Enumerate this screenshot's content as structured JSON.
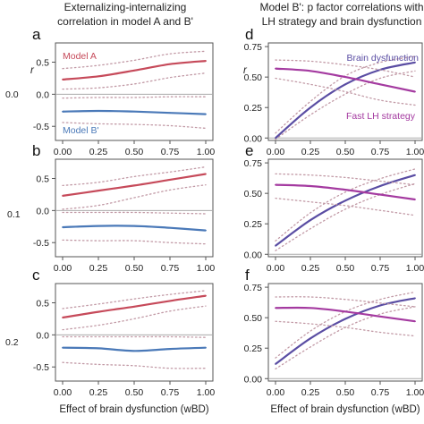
{
  "titles": {
    "left": [
      "Externalizing-internalizing",
      "correlation in model A and B'"
    ],
    "right": [
      "Model B': p factor correlations with",
      "LH strategy and brain dysfunction"
    ]
  },
  "row_labels": [
    "0.0",
    "0.1",
    "0.2"
  ],
  "row_axis_label": "rLH,BD",
  "colors": {
    "model_a": "#c64a5a",
    "model_b": "#4a79b8",
    "brain_dysfunction": "#5a4da3",
    "fast_lh": "#a43aa0",
    "ci": "#c29aa6",
    "zero_line": "#aaaaaa"
  },
  "chart_data": [
    {
      "panel": "a",
      "type": "line",
      "ylabel": "r",
      "xlabel": "",
      "x": [
        0,
        0.25,
        0.5,
        0.75,
        1
      ],
      "xticks": [
        "0.00",
        "0.25",
        "0.50",
        "0.75",
        "1.00"
      ],
      "ylim": [
        -0.72,
        0.8
      ],
      "yticks": [
        0.5,
        0.0,
        -0.5
      ],
      "ytick_labels": [
        "0.5",
        "0.0",
        "-0.5"
      ],
      "series": [
        {
          "name": "Model A",
          "color_key": "model_a",
          "labeled": true,
          "label_pos": "upper-left",
          "values": [
            0.23,
            0.28,
            0.37,
            0.47,
            0.52
          ],
          "lower": [
            0.08,
            0.1,
            0.16,
            0.26,
            0.33
          ],
          "upper": [
            0.4,
            0.45,
            0.53,
            0.63,
            0.67
          ]
        },
        {
          "name": "Model B'",
          "color_key": "model_b",
          "labeled": true,
          "label_pos": "lower-left",
          "values": [
            -0.27,
            -0.26,
            -0.27,
            -0.29,
            -0.31
          ],
          "lower": [
            -0.44,
            -0.46,
            -0.47,
            -0.49,
            -0.53
          ],
          "upper": [
            -0.06,
            -0.05,
            -0.05,
            -0.04,
            -0.04
          ]
        }
      ]
    },
    {
      "panel": "b",
      "type": "line",
      "ylabel": "",
      "xlabel": "",
      "x": [
        0,
        0.25,
        0.5,
        0.75,
        1
      ],
      "xticks": [
        "0.00",
        "0.25",
        "0.50",
        "0.75",
        "1.00"
      ],
      "ylim": [
        -0.72,
        0.8
      ],
      "yticks": [
        0.5,
        0.0,
        -0.5
      ],
      "ytick_labels": [
        "0.5",
        "0.0",
        "-0.5"
      ],
      "series": [
        {
          "name": "",
          "color_key": "model_a",
          "labeled": false,
          "values": [
            0.23,
            0.31,
            0.39,
            0.48,
            0.57
          ],
          "lower": [
            0.02,
            0.08,
            0.2,
            0.32,
            0.4
          ],
          "upper": [
            0.39,
            0.44,
            0.53,
            0.6,
            0.68
          ]
        },
        {
          "name": "",
          "color_key": "model_b",
          "labeled": false,
          "values": [
            -0.26,
            -0.24,
            -0.24,
            -0.27,
            -0.31
          ],
          "lower": [
            -0.46,
            -0.47,
            -0.47,
            -0.5,
            -0.52
          ],
          "upper": [
            -0.03,
            -0.03,
            -0.03,
            -0.04,
            -0.05
          ]
        }
      ]
    },
    {
      "panel": "c",
      "type": "line",
      "ylabel": "",
      "xlabel": "Effect of brain dysfunction (wBD)",
      "x": [
        0,
        0.25,
        0.5,
        0.75,
        1
      ],
      "xticks": [
        "0.00",
        "0.25",
        "0.50",
        "0.75",
        "1.00"
      ],
      "ylim": [
        -0.72,
        0.8
      ],
      "yticks": [
        0.5,
        0.0,
        -0.5
      ],
      "ytick_labels": [
        "0.5",
        "0.0",
        "-0.5"
      ],
      "series": [
        {
          "name": "",
          "color_key": "model_a",
          "labeled": false,
          "values": [
            0.27,
            0.36,
            0.44,
            0.53,
            0.61
          ],
          "lower": [
            0.08,
            0.15,
            0.25,
            0.37,
            0.45
          ],
          "upper": [
            0.41,
            0.48,
            0.56,
            0.63,
            0.69
          ]
        },
        {
          "name": "",
          "color_key": "model_b",
          "labeled": false,
          "values": [
            -0.2,
            -0.21,
            -0.25,
            -0.22,
            -0.2
          ],
          "lower": [
            -0.43,
            -0.46,
            -0.48,
            -0.52,
            -0.52
          ],
          "upper": [
            -0.03,
            -0.03,
            -0.03,
            -0.03,
            -0.04
          ]
        }
      ]
    },
    {
      "panel": "d",
      "type": "line",
      "ylabel": "r",
      "xlabel": "",
      "x": [
        0,
        0.25,
        0.5,
        0.75,
        1
      ],
      "xticks": [
        "0.00",
        "0.25",
        "0.50",
        "0.75",
        "1.00"
      ],
      "ylim": [
        -0.02,
        0.78
      ],
      "yticks": [
        0,
        0.25,
        0.5,
        0.75
      ],
      "ytick_labels": [
        "0.00",
        "0.25",
        "0.50",
        "0.75"
      ],
      "series": [
        {
          "name": "Brain dysfunction",
          "color_key": "brain_dysfunction",
          "labeled": true,
          "label_pos": "upper-right",
          "values": [
            0.0,
            0.25,
            0.44,
            0.56,
            0.62
          ],
          "lower": [
            -0.01,
            0.19,
            0.36,
            0.49,
            0.55
          ],
          "upper": [
            0.04,
            0.3,
            0.51,
            0.62,
            0.67
          ]
        },
        {
          "name": "Fast LH strategy",
          "color_key": "fast_lh",
          "labeled": true,
          "label_pos": "lower-right",
          "values": [
            0.57,
            0.55,
            0.5,
            0.44,
            0.38
          ],
          "lower": [
            0.49,
            0.44,
            0.38,
            0.31,
            0.27
          ],
          "upper": [
            0.64,
            0.63,
            0.6,
            0.56,
            0.5
          ]
        }
      ]
    },
    {
      "panel": "e",
      "type": "line",
      "ylabel": "",
      "xlabel": "",
      "x": [
        0,
        0.25,
        0.5,
        0.75,
        1
      ],
      "xticks": [
        "0.00",
        "0.25",
        "0.50",
        "0.75",
        "1.00"
      ],
      "ylim": [
        -0.02,
        0.78
      ],
      "yticks": [
        0,
        0.25,
        0.5,
        0.75
      ],
      "ytick_labels": [
        "0.00",
        "0.25",
        "0.50",
        "0.75"
      ],
      "series": [
        {
          "name": "",
          "color_key": "brain_dysfunction",
          "labeled": false,
          "values": [
            0.07,
            0.28,
            0.44,
            0.56,
            0.65
          ],
          "lower": [
            0.03,
            0.21,
            0.37,
            0.49,
            0.58
          ],
          "upper": [
            0.11,
            0.34,
            0.51,
            0.62,
            0.7
          ]
        },
        {
          "name": "",
          "color_key": "fast_lh",
          "labeled": false,
          "values": [
            0.57,
            0.56,
            0.53,
            0.49,
            0.45
          ],
          "lower": [
            0.46,
            0.43,
            0.4,
            0.36,
            0.32
          ],
          "upper": [
            0.66,
            0.65,
            0.63,
            0.6,
            0.57
          ]
        }
      ]
    },
    {
      "panel": "f",
      "type": "line",
      "ylabel": "",
      "xlabel": "Effect of brain dysfunction (wBD)",
      "x": [
        0,
        0.25,
        0.5,
        0.75,
        1
      ],
      "xticks": [
        "0.00",
        "0.25",
        "0.50",
        "0.75",
        "1.00"
      ],
      "ylim": [
        -0.02,
        0.78
      ],
      "yticks": [
        0,
        0.25,
        0.5,
        0.75
      ],
      "ytick_labels": [
        "0.00",
        "0.25",
        "0.50",
        "0.75"
      ],
      "series": [
        {
          "name": "",
          "color_key": "brain_dysfunction",
          "labeled": false,
          "values": [
            0.12,
            0.33,
            0.49,
            0.6,
            0.66
          ],
          "lower": [
            0.08,
            0.26,
            0.42,
            0.53,
            0.59
          ],
          "upper": [
            0.17,
            0.39,
            0.55,
            0.65,
            0.71
          ]
        },
        {
          "name": "",
          "color_key": "fast_lh",
          "labeled": false,
          "values": [
            0.58,
            0.58,
            0.55,
            0.51,
            0.47
          ],
          "lower": [
            0.47,
            0.45,
            0.42,
            0.38,
            0.35
          ],
          "upper": [
            0.67,
            0.67,
            0.65,
            0.62,
            0.59
          ]
        }
      ]
    }
  ]
}
